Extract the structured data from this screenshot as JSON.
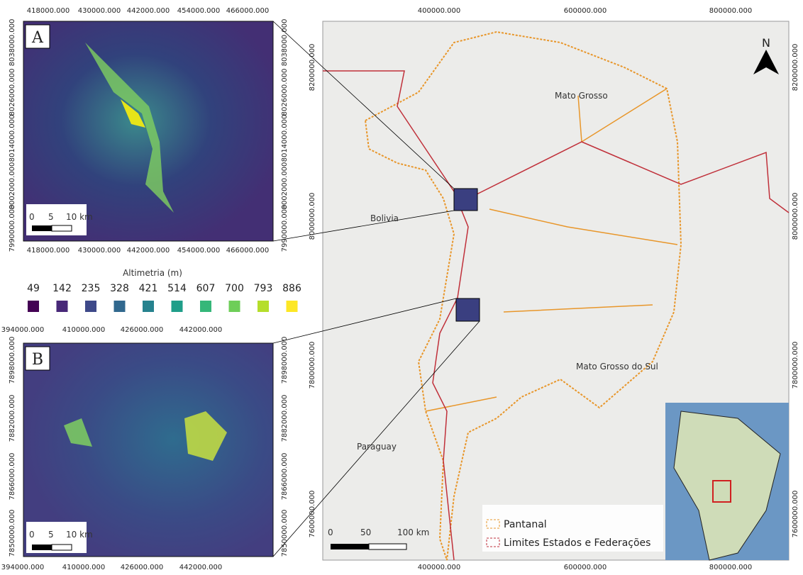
{
  "panel_a": {
    "label": "A",
    "top_ticks": [
      "418000.000",
      "430000.000",
      "442000.000",
      "454000.000",
      "466000.000"
    ],
    "left_ticks": [
      "8038000.000",
      "8026000.000",
      "8014000.000",
      "8002000.000",
      "7990000.000"
    ],
    "scale": [
      "0",
      "5",
      "10 km"
    ]
  },
  "legend_altimetria": {
    "title": "Altimetria (m)",
    "values": [
      "49",
      "142",
      "235",
      "328",
      "421",
      "514",
      "607",
      "700",
      "793",
      "886"
    ]
  },
  "panel_b": {
    "label": "B",
    "top_ticks": [
      "394000.000",
      "410000.000",
      "426000.000",
      "442000.000"
    ],
    "left_ticks": [
      "7898000.000",
      "7882000.000",
      "7866000.000",
      "7850000.000"
    ],
    "scale": [
      "0",
      "5",
      "10 km"
    ]
  },
  "main_map": {
    "top_ticks": [
      "400000.000",
      "600000.000",
      "800000.000"
    ],
    "left_ticks": [
      "8200000.000",
      "8000000.000",
      "7800000.000",
      "7600000.000"
    ],
    "places": [
      "Mato Grosso",
      "Bolivia",
      "Mato Grosso do Sul",
      "Paraguay"
    ],
    "north": "N",
    "scale": [
      "0",
      "50",
      "100 km"
    ],
    "legend": [
      "Pantanal",
      "Limites Estados e Federações"
    ]
  }
}
